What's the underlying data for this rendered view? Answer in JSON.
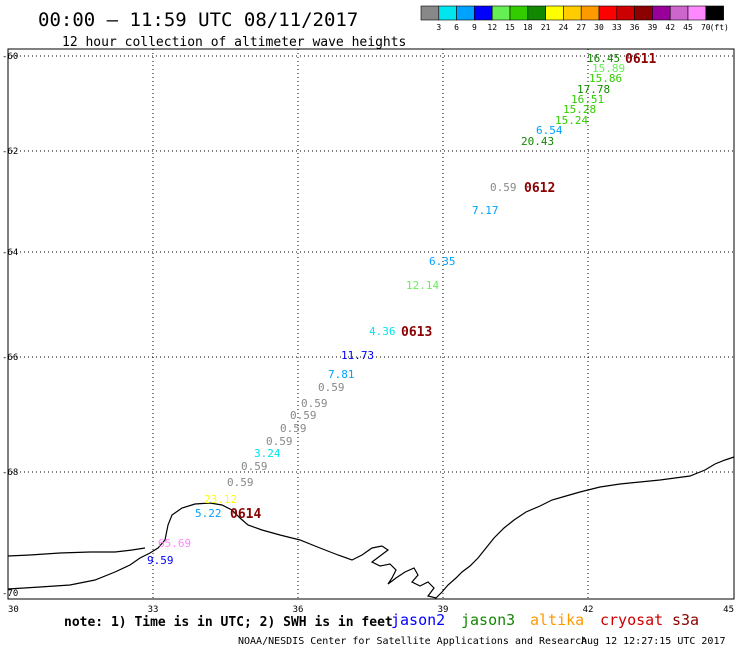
{
  "header": {
    "title": "00:00 – 11:59 UTC 08/11/2017",
    "subtitle": "12 hour collection of altimeter wave heights"
  },
  "color_scale": {
    "labels": [
      "3",
      "6",
      "9",
      "12",
      "15",
      "18",
      "21",
      "24",
      "27",
      "30",
      "33",
      "36",
      "39",
      "42",
      "45",
      "70"
    ],
    "unit": "(ft)",
    "colors": [
      "#888888",
      "#00e5ee",
      "#00a2ff",
      "#0000ff",
      "#66ee55",
      "#33cc00",
      "#118800",
      "#ffff00",
      "#ffcc00",
      "#ff9900",
      "#ff0000",
      "#cc0000",
      "#8b0000",
      "#990099",
      "#cc66cc",
      "#ff88ff",
      "#000000"
    ]
  },
  "map": {
    "lat_labels": [
      "-60",
      "-62",
      "-64",
      "-66",
      "-68",
      "-70"
    ],
    "lon_labels": [
      "30",
      "33",
      "36",
      "39",
      "42",
      "45"
    ],
    "lat_range": [
      -70,
      -60
    ],
    "lon_range": [
      30,
      45
    ],
    "gridlines": true
  },
  "passes": [
    {
      "label": "0611"
    },
    {
      "label": "0612"
    },
    {
      "label": "0613"
    },
    {
      "label": "0614"
    }
  ],
  "wave_heights": [
    {
      "value": "16.45",
      "color": "#118800"
    },
    {
      "value": "15.89",
      "color": "#66ee55"
    },
    {
      "value": "15.86",
      "color": "#33cc00"
    },
    {
      "value": "17.78",
      "color": "#118800"
    },
    {
      "value": "16.51",
      "color": "#33cc00"
    },
    {
      "value": "15.28",
      "color": "#33cc00"
    },
    {
      "value": "15.24",
      "color": "#33cc00"
    },
    {
      "value": "6.54",
      "color": "#00a2ff"
    },
    {
      "value": "20.43",
      "color": "#118800"
    },
    {
      "value": "0.59",
      "color": "#888888"
    },
    {
      "value": "7.17",
      "color": "#00a2ff"
    },
    {
      "value": "6.35",
      "color": "#00a2ff"
    },
    {
      "value": "12.14",
      "color": "#66ee55"
    },
    {
      "value": "4.36",
      "color": "#00e5ee"
    },
    {
      "value": "11.73",
      "color": "#0000ff"
    },
    {
      "value": "7.81",
      "color": "#00a2ff"
    },
    {
      "value": "0.59",
      "color": "#888888"
    },
    {
      "value": "0.59",
      "color": "#888888"
    },
    {
      "value": "0.59",
      "color": "#888888"
    },
    {
      "value": "0.59",
      "color": "#888888"
    },
    {
      "value": "0.59",
      "color": "#888888"
    },
    {
      "value": "3.24",
      "color": "#00e5ee"
    },
    {
      "value": "0.59",
      "color": "#888888"
    },
    {
      "value": "0.59",
      "color": "#888888"
    },
    {
      "value": "23.12",
      "color": "#ffff00"
    },
    {
      "value": "5.22",
      "color": "#00a2ff"
    },
    {
      "value": "65.69",
      "color": "#ff88ff"
    },
    {
      "value": "9.59",
      "color": "#0000ff"
    }
  ],
  "note": "note: 1) Time is in UTC; 2) SWH is in feet",
  "satellites": [
    {
      "name": "jason2",
      "color": "#0000ff"
    },
    {
      "name": "jason3",
      "color": "#118800"
    },
    {
      "name": "altika",
      "color": "#ff9900"
    },
    {
      "name": "cryosat",
      "color": "#cc0000"
    },
    {
      "name": "s3a",
      "color": "#8b0000"
    }
  ],
  "footer": {
    "credit": "NOAA/NESDIS Center for Satellite Applications and Research",
    "timestamp": "Aug 12 12:27:15 UTC 2017"
  }
}
